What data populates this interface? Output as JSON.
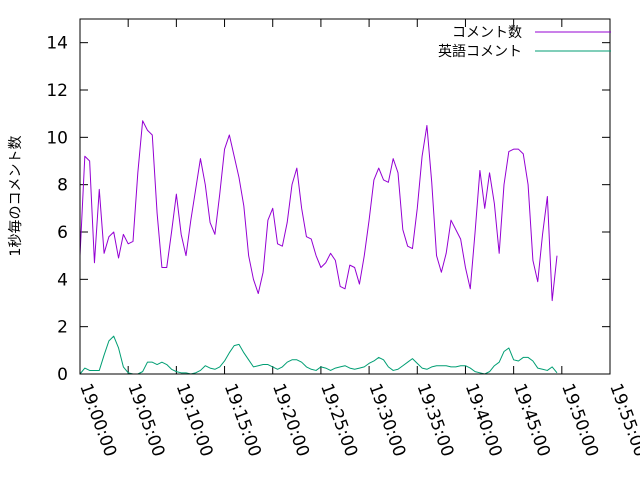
{
  "chart_data": {
    "type": "line",
    "title": "",
    "xlabel": "",
    "ylabel": "1秒毎のコメント数",
    "ylim": [
      0,
      15
    ],
    "yticks": [
      0,
      2,
      4,
      6,
      8,
      10,
      12,
      14
    ],
    "xlim_minutes": [
      0,
      55
    ],
    "xtick_labels": [
      "19:00:00",
      "19:05:00",
      "19:10:00",
      "19:15:00",
      "19:20:00",
      "19:25:00",
      "19:30:00",
      "19:35:00",
      "19:40:00",
      "19:45:00",
      "19:50:00",
      "19:55:00"
    ],
    "legend_position": "top-right",
    "grid": false,
    "series": [
      {
        "name": "コメント数",
        "color": "#9400d3",
        "points": [
          [
            0.0,
            5.0
          ],
          [
            0.5,
            9.2
          ],
          [
            1.0,
            9.0
          ],
          [
            1.5,
            4.7
          ],
          [
            2.0,
            7.8
          ],
          [
            2.5,
            5.1
          ],
          [
            3.0,
            5.8
          ],
          [
            3.5,
            6.0
          ],
          [
            4.0,
            4.9
          ],
          [
            4.5,
            5.9
          ],
          [
            5.0,
            5.5
          ],
          [
            5.5,
            5.6
          ],
          [
            6.0,
            8.5
          ],
          [
            6.5,
            10.7
          ],
          [
            7.0,
            10.3
          ],
          [
            7.5,
            10.1
          ],
          [
            8.0,
            6.8
          ],
          [
            8.5,
            4.5
          ],
          [
            9.0,
            4.5
          ],
          [
            9.5,
            6.0
          ],
          [
            10.0,
            7.6
          ],
          [
            10.5,
            5.9
          ],
          [
            11.0,
            5.0
          ],
          [
            11.5,
            6.5
          ],
          [
            12.0,
            7.8
          ],
          [
            12.5,
            9.1
          ],
          [
            13.0,
            8.0
          ],
          [
            13.5,
            6.4
          ],
          [
            14.0,
            5.9
          ],
          [
            14.5,
            7.6
          ],
          [
            15.0,
            9.5
          ],
          [
            15.5,
            10.1
          ],
          [
            16.0,
            9.2
          ],
          [
            16.5,
            8.3
          ],
          [
            17.0,
            7.1
          ],
          [
            17.5,
            5.0
          ],
          [
            18.0,
            4.0
          ],
          [
            18.5,
            3.4
          ],
          [
            19.0,
            4.3
          ],
          [
            19.5,
            6.5
          ],
          [
            20.0,
            7.0
          ],
          [
            20.5,
            5.5
          ],
          [
            21.0,
            5.4
          ],
          [
            21.5,
            6.4
          ],
          [
            22.0,
            8.0
          ],
          [
            22.5,
            8.7
          ],
          [
            23.0,
            7.0
          ],
          [
            23.5,
            5.8
          ],
          [
            24.0,
            5.7
          ],
          [
            24.5,
            5.0
          ],
          [
            25.0,
            4.5
          ],
          [
            25.5,
            4.7
          ],
          [
            26.0,
            5.1
          ],
          [
            26.5,
            4.8
          ],
          [
            27.0,
            3.7
          ],
          [
            27.5,
            3.6
          ],
          [
            28.0,
            4.6
          ],
          [
            28.5,
            4.5
          ],
          [
            29.0,
            3.8
          ],
          [
            29.5,
            5.0
          ],
          [
            30.0,
            6.5
          ],
          [
            30.5,
            8.2
          ],
          [
            31.0,
            8.7
          ],
          [
            31.5,
            8.2
          ],
          [
            32.0,
            8.1
          ],
          [
            32.5,
            9.1
          ],
          [
            33.0,
            8.5
          ],
          [
            33.5,
            6.1
          ],
          [
            34.0,
            5.4
          ],
          [
            34.5,
            5.3
          ],
          [
            35.0,
            7.0
          ],
          [
            35.5,
            9.2
          ],
          [
            36.0,
            10.5
          ],
          [
            36.5,
            8.1
          ],
          [
            37.0,
            5.0
          ],
          [
            37.5,
            4.3
          ],
          [
            38.0,
            5.1
          ],
          [
            38.5,
            6.5
          ],
          [
            39.0,
            6.1
          ],
          [
            39.5,
            5.7
          ],
          [
            40.0,
            4.5
          ],
          [
            40.5,
            3.6
          ],
          [
            41.0,
            6.0
          ],
          [
            41.5,
            8.6
          ],
          [
            42.0,
            7.0
          ],
          [
            42.5,
            8.5
          ],
          [
            43.0,
            7.2
          ],
          [
            43.5,
            5.1
          ],
          [
            44.0,
            8.0
          ],
          [
            44.5,
            9.4
          ],
          [
            45.0,
            9.5
          ],
          [
            45.5,
            9.5
          ],
          [
            46.0,
            9.3
          ],
          [
            46.5,
            8.0
          ],
          [
            47.0,
            4.8
          ],
          [
            47.5,
            3.9
          ],
          [
            48.0,
            5.9
          ],
          [
            48.5,
            7.5
          ],
          [
            49.0,
            3.1
          ],
          [
            49.5,
            5.0
          ]
        ]
      },
      {
        "name": "英語コメント",
        "color": "#009e73",
        "points": [
          [
            0.0,
            0.0
          ],
          [
            0.5,
            0.25
          ],
          [
            1.0,
            0.15
          ],
          [
            1.5,
            0.15
          ],
          [
            2.0,
            0.15
          ],
          [
            2.5,
            0.8
          ],
          [
            3.0,
            1.4
          ],
          [
            3.5,
            1.6
          ],
          [
            4.0,
            1.1
          ],
          [
            4.5,
            0.3
          ],
          [
            5.0,
            0.05
          ],
          [
            5.5,
            0.0
          ],
          [
            6.0,
            0.0
          ],
          [
            6.5,
            0.1
          ],
          [
            7.0,
            0.5
          ],
          [
            7.5,
            0.5
          ],
          [
            8.0,
            0.4
          ],
          [
            8.5,
            0.5
          ],
          [
            9.0,
            0.4
          ],
          [
            9.5,
            0.2
          ],
          [
            10.0,
            0.1
          ],
          [
            10.5,
            0.05
          ],
          [
            11.0,
            0.05
          ],
          [
            11.5,
            0.0
          ],
          [
            12.0,
            0.05
          ],
          [
            12.5,
            0.15
          ],
          [
            13.0,
            0.35
          ],
          [
            13.5,
            0.25
          ],
          [
            14.0,
            0.2
          ],
          [
            14.5,
            0.3
          ],
          [
            15.0,
            0.55
          ],
          [
            15.5,
            0.9
          ],
          [
            16.0,
            1.2
          ],
          [
            16.5,
            1.25
          ],
          [
            17.0,
            0.9
          ],
          [
            17.5,
            0.6
          ],
          [
            18.0,
            0.3
          ],
          [
            18.5,
            0.35
          ],
          [
            19.0,
            0.4
          ],
          [
            19.5,
            0.4
          ],
          [
            20.0,
            0.3
          ],
          [
            20.5,
            0.2
          ],
          [
            21.0,
            0.3
          ],
          [
            21.5,
            0.5
          ],
          [
            22.0,
            0.6
          ],
          [
            22.5,
            0.6
          ],
          [
            23.0,
            0.5
          ],
          [
            23.5,
            0.3
          ],
          [
            24.0,
            0.2
          ],
          [
            24.5,
            0.15
          ],
          [
            25.0,
            0.3
          ],
          [
            25.5,
            0.25
          ],
          [
            26.0,
            0.15
          ],
          [
            26.5,
            0.25
          ],
          [
            27.0,
            0.3
          ],
          [
            27.5,
            0.35
          ],
          [
            28.0,
            0.25
          ],
          [
            28.5,
            0.2
          ],
          [
            29.0,
            0.25
          ],
          [
            29.5,
            0.3
          ],
          [
            30.0,
            0.45
          ],
          [
            30.5,
            0.55
          ],
          [
            31.0,
            0.7
          ],
          [
            31.5,
            0.6
          ],
          [
            32.0,
            0.3
          ],
          [
            32.5,
            0.15
          ],
          [
            33.0,
            0.2
          ],
          [
            33.5,
            0.35
          ],
          [
            34.0,
            0.5
          ],
          [
            34.5,
            0.65
          ],
          [
            35.0,
            0.45
          ],
          [
            35.5,
            0.25
          ],
          [
            36.0,
            0.2
          ],
          [
            36.5,
            0.3
          ],
          [
            37.0,
            0.35
          ],
          [
            37.5,
            0.35
          ],
          [
            38.0,
            0.35
          ],
          [
            38.5,
            0.3
          ],
          [
            39.0,
            0.3
          ],
          [
            39.5,
            0.35
          ],
          [
            40.0,
            0.35
          ],
          [
            40.5,
            0.25
          ],
          [
            41.0,
            0.1
          ],
          [
            41.5,
            0.05
          ],
          [
            42.0,
            0.0
          ],
          [
            42.5,
            0.1
          ],
          [
            43.0,
            0.35
          ],
          [
            43.5,
            0.5
          ],
          [
            44.0,
            0.95
          ],
          [
            44.5,
            1.1
          ],
          [
            45.0,
            0.6
          ],
          [
            45.5,
            0.55
          ],
          [
            46.0,
            0.7
          ],
          [
            46.5,
            0.7
          ],
          [
            47.0,
            0.55
          ],
          [
            47.5,
            0.25
          ],
          [
            48.0,
            0.2
          ],
          [
            48.5,
            0.15
          ],
          [
            49.0,
            0.3
          ],
          [
            49.5,
            0.05
          ]
        ]
      }
    ]
  }
}
